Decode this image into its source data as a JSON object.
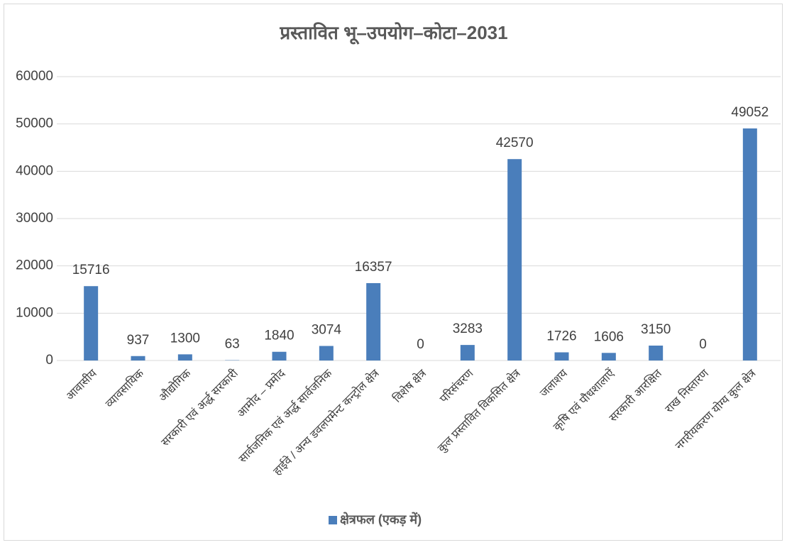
{
  "chart_data": {
    "type": "bar",
    "title": "प्रस्तावित भू–उपयोग–कोटा–2031",
    "categories": [
      "आवासीय",
      "व्यावसायिक",
      "औद्योगिक",
      "सरकारी एवं अर्द्ध सरकारी",
      "आमोद – प्रमोद",
      "सार्वजनिक एवं अर्द्ध सार्वजनिक",
      "हाईवे / अन्य डवलपमेन्ट कन्ट्रोल क्षेत्र",
      "विशेष क्षेत्र",
      "परिसंचरण",
      "कुल प्रस्तावित विकसित क्षेत्र",
      "जलाशय",
      "कृषि एवं पौधशालाऐं",
      "सरकारी आरक्षित",
      "राख निस्तारण",
      "नगरीयकरण योग्य कुल क्षेत्र"
    ],
    "series": [
      {
        "name": "क्षेत्रफल (एकड़ में)",
        "color": "#4a7ebb",
        "values": [
          15716,
          937,
          1300,
          63,
          1840,
          3074,
          16357,
          0,
          3283,
          42570,
          1726,
          1606,
          3150,
          0,
          49052
        ]
      }
    ],
    "ylim": [
      0,
      60000
    ],
    "yticks": [
      0,
      10000,
      20000,
      30000,
      40000,
      50000,
      60000
    ],
    "grid": true,
    "legend": "bottom"
  }
}
